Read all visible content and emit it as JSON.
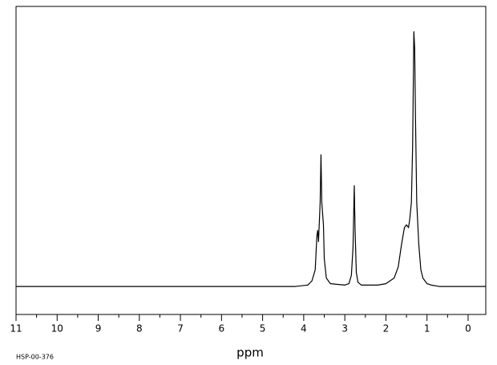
{
  "chart_data": {
    "type": "line",
    "code": "HSP-00-376",
    "x_label": "ppm",
    "xlim": [
      11,
      -0.43
    ],
    "ylim": [
      -10,
      100
    ],
    "xticks": [
      11,
      10,
      9,
      8,
      7,
      6,
      5,
      4,
      3,
      2,
      1,
      0
    ],
    "xminorticks": [
      10.5,
      9.5,
      8.5,
      7.5,
      6.5,
      5.5,
      4.5,
      3.5,
      2.5,
      1.5,
      0.5
    ],
    "series": [
      {
        "color": "#000000",
        "x": [
          11,
          10,
          5,
          4.2,
          3.9,
          3.8,
          3.72,
          3.68,
          3.66,
          3.64,
          3.6,
          3.58,
          3.56,
          3.54,
          3.52,
          3.5,
          3.45,
          3.35,
          3.0,
          2.9,
          2.84,
          2.8,
          2.77,
          2.75,
          2.72,
          2.68,
          2.6,
          2.2,
          2.0,
          1.8,
          1.7,
          1.62,
          1.55,
          1.5,
          1.45,
          1.42,
          1.38,
          1.35,
          1.32,
          1.3,
          1.28,
          1.25,
          1.2,
          1.15,
          1.1,
          1.0,
          0.9,
          0.7,
          -0.43
        ],
        "values": [
          0,
          0,
          0,
          0,
          0.5,
          2,
          6,
          18,
          20,
          16,
          30,
          47,
          30,
          26,
          22,
          10,
          3,
          1,
          0.5,
          1,
          4,
          14,
          36,
          20,
          5,
          1.5,
          0.5,
          0.5,
          1,
          3,
          7,
          15,
          21,
          22,
          21,
          24,
          30,
          50,
          91,
          85,
          60,
          30,
          15,
          6,
          3,
          1,
          0.5,
          0,
          0
        ]
      }
    ]
  }
}
